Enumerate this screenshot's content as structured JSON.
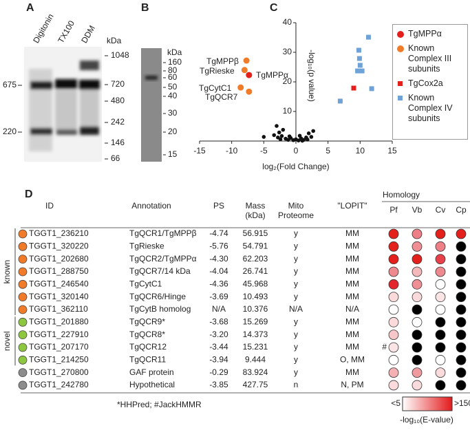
{
  "panels": {
    "a": {
      "label": "A",
      "unit": "kDa",
      "lanes": [
        "Digitonin",
        "TX100",
        "DDM"
      ],
      "ladder": [
        "1048",
        "720",
        "480",
        "242",
        "146",
        "66"
      ],
      "markers": [
        "675",
        "220"
      ]
    },
    "b": {
      "label": "B",
      "unit": "kDa",
      "ladder": [
        "160",
        "80",
        "60",
        "50",
        "40",
        "30",
        "20",
        "15"
      ]
    },
    "c": {
      "label": "C"
    },
    "d": {
      "label": "D"
    }
  },
  "chart_data": {
    "type": "scatter",
    "xlabel": "log₂(Fold Change)",
    "ylabel": "-log₁₀(p value)",
    "xlim": [
      -15,
      15
    ],
    "xticks": [
      -15,
      -10,
      -5,
      0,
      5,
      10,
      15
    ],
    "ylim": [
      0,
      40
    ],
    "yticks": [
      10,
      20,
      30,
      40
    ],
    "series": [
      {
        "color": "#111111",
        "marker": "circle",
        "x": [
          -3.0,
          -2.6,
          -3.4,
          -2.8,
          -2.2,
          -1.6,
          -1.2,
          -0.8,
          -0.4,
          0,
          0.4,
          0.8,
          1.2,
          1.6,
          2.0,
          2.4,
          2.7,
          1.8,
          -2.0,
          -1.0,
          0.6,
          -5.0,
          -2.4,
          1.0
        ],
        "y": [
          5.1,
          2.9,
          2.0,
          1.2,
          1.7,
          0.8,
          0.4,
          1.0,
          0.3,
          0.6,
          0.2,
          0.9,
          0.4,
          1.2,
          2.6,
          1.4,
          3.4,
          0.5,
          3.8,
          1.6,
          1.8,
          1.4,
          0.6,
          0.1
        ]
      },
      {
        "name": "Known Complex III subunits",
        "color": "#f07c2a",
        "marker": "circle",
        "x": [
          -7.7,
          -8.0,
          -8.6,
          -7.3
        ],
        "y": [
          27.2,
          24.0,
          18.1,
          16.7
        ]
      },
      {
        "name": "TgMPPα",
        "color": "#e3201b",
        "marker": "circle",
        "x": [
          -7.3
        ],
        "y": [
          22.3
        ]
      },
      {
        "name": "TgCox2a",
        "color": "#e3201b",
        "marker": "square",
        "x": [
          9.0
        ],
        "y": [
          17.9
        ]
      },
      {
        "name": "Known Complex IV subunits",
        "color": "#6fa3d8",
        "marker": "square",
        "x": [
          11.3,
          9.8,
          9.9,
          10.0,
          9.6,
          10.3,
          11.8,
          6.9
        ],
        "y": [
          35.1,
          30.7,
          27.9,
          25.6,
          23.7,
          23.7,
          17.7,
          13.5
        ]
      }
    ],
    "legend_order": [
      2,
      1,
      3,
      4
    ],
    "annotations": [
      "TgMPPβ",
      "TgRieske",
      "TgMPPα",
      "TgCytC1",
      "TgQCR7"
    ]
  },
  "table": {
    "headers": [
      "ID",
      "Annotation",
      "PS",
      "Mass (kDa)",
      "Mito Proteome",
      "\"LOPIT\""
    ],
    "homology_title": "Homology",
    "homology_headers": [
      "Pf",
      "Vb",
      "Cv",
      "Cp"
    ],
    "groups": [
      {
        "label": "known",
        "rows": [
          0,
          6
        ]
      },
      {
        "label": "novel",
        "rows": [
          7,
          10
        ]
      }
    ],
    "rows": [
      {
        "dot": "#f07c2a",
        "cells": [
          "TGGT1_236210",
          "TgQCR1/TgMPPβ",
          "-4.74",
          "56.915",
          "y",
          "MM"
        ],
        "homology": [
          "#e3201b",
          "#ef7f86",
          "#e3201b",
          "#e3201b"
        ]
      },
      {
        "dot": "#f07c2a",
        "cells": [
          "TGGT1_320220",
          "TgRieske",
          "-5.76",
          "54.791",
          "y",
          "MM"
        ],
        "homology": [
          "#e3201b",
          "#ef8f95",
          "#ef7f86",
          "#000000"
        ]
      },
      {
        "dot": "#f07c2a",
        "cells": [
          "TGGT1_202680",
          "TgQCR2/TgMPPα",
          "-4.30",
          "62.203",
          "y",
          "MM"
        ],
        "homology": [
          "#e3201b",
          "#e3201b",
          "#e8404a",
          "#000000"
        ]
      },
      {
        "dot": "#f07c2a",
        "cells": [
          "TGGT1_288750",
          "TgQCR7/14 kDa",
          "-4.04",
          "26.741",
          "y",
          "MM"
        ],
        "homology": [
          "#ee8a8f",
          "#f5b9bc",
          "#ee8a8f",
          "#000000"
        ]
      },
      {
        "dot": "#f07c2a",
        "cells": [
          "TGGT1_246540",
          "TgCytC1",
          "-4.36",
          "45.968",
          "y",
          "MM"
        ],
        "homology": [
          "#e3262e",
          "#ef8f95",
          "#ffffff",
          "#000000"
        ]
      },
      {
        "dot": "#f07c2a",
        "cells": [
          "TGGT1_320140",
          "TgQCR6/Hinge",
          "-3.69",
          "10.493",
          "y",
          "MM"
        ],
        "homology": [
          "#fadadb",
          "#fadadb",
          "#fbe4e5",
          "#000000"
        ]
      },
      {
        "dot": "#f07c2a",
        "cells": [
          "TGGT1_362110",
          "TgCytB homolog",
          "N/A",
          "10.376",
          "N/A",
          "N/A"
        ],
        "homology": [
          "#ffffff",
          "#000000",
          "#ffffff",
          "#000000"
        ]
      },
      {
        "dot": "#8dc63f",
        "cells": [
          "TGGT1_201880",
          "TgQCR9*",
          "-3.68",
          "15.269",
          "y",
          "MM"
        ],
        "homology": [
          "#fadadb",
          "#ffffff",
          "#000000",
          "#000000"
        ]
      },
      {
        "dot": "#8dc63f",
        "cells": [
          "TGGT1_227910",
          "TgQCR8*",
          "-3.20",
          "14.373",
          "y",
          "MM"
        ],
        "homology": [
          "#f7c6c8",
          "#000000",
          "#000000",
          "#000000"
        ]
      },
      {
        "dot": "#8dc63f",
        "note": "#",
        "cells": [
          "TGGT1_207170",
          "TgQCR12",
          "-3.44",
          "15.231",
          "y",
          "MM"
        ],
        "homology": [
          "#fbe4e5",
          "#000000",
          "#000000",
          "#000000"
        ]
      },
      {
        "dot": "#8dc63f",
        "cells": [
          "TGGT1_214250",
          "TgQCR11",
          "-3.94",
          "9.444",
          "y",
          "O, MM"
        ],
        "homology": [
          "#ffffff",
          "#000000",
          "#ffffff",
          "#000000"
        ]
      },
      {
        "dot": "#8c8c8c",
        "cells": [
          "TGGT1_270800",
          "GAF protein",
          "-0.29",
          "83.924",
          "y",
          "MM"
        ],
        "homology": [
          "#f5b0b4",
          "#ef9ba0",
          "#fadadb",
          "#000000"
        ]
      },
      {
        "dot": "#8c8c8c",
        "cells": [
          "TGGT1_242780",
          "Hypothetical",
          "-3.85",
          "427.75",
          "n",
          "N, PM"
        ],
        "homology": [
          "#fadadb",
          "#fadadb",
          "#000000",
          "#000000"
        ]
      }
    ],
    "footnote": "*HHPred; #JackHMMR",
    "scale_min": "<5",
    "scale_max": ">150",
    "scale_title": "-log₁₀(E-value)"
  }
}
